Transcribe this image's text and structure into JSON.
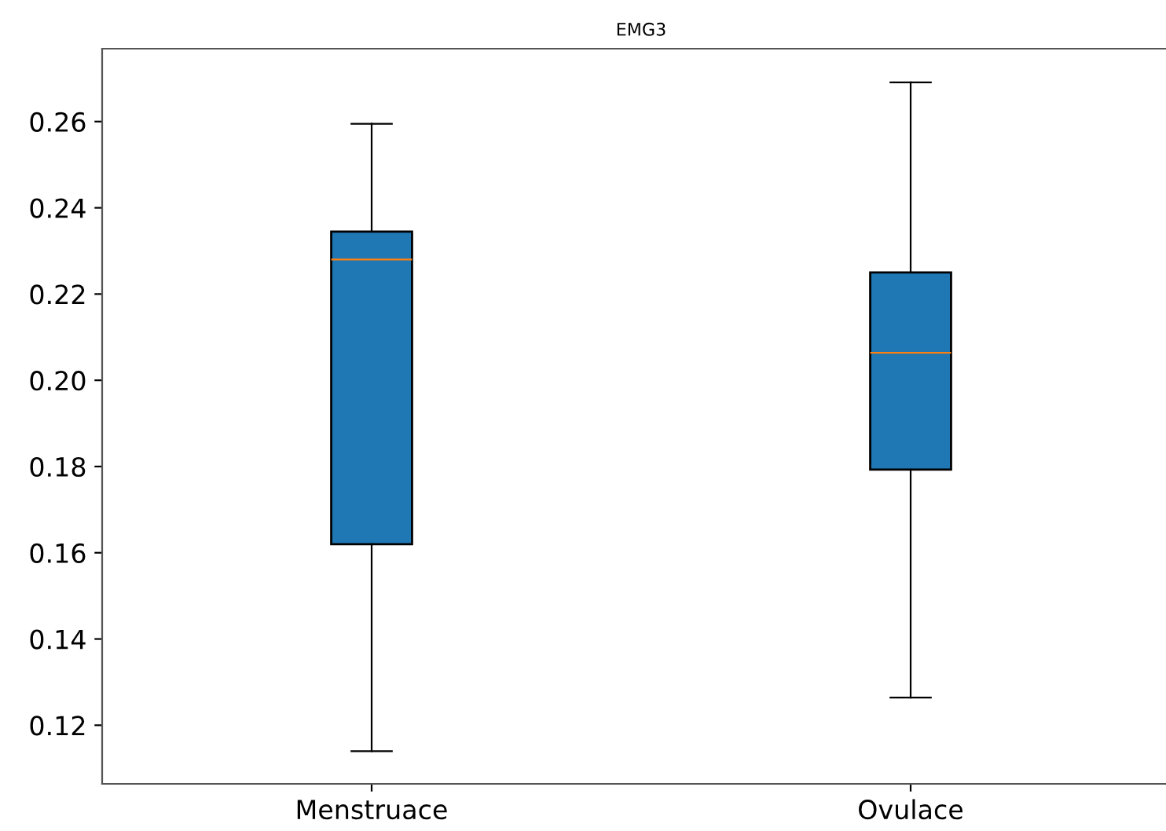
{
  "chart_data": {
    "type": "box",
    "title": "EMG3",
    "categories": [
      "Menstruace",
      "Ovulace"
    ],
    "color": "#1f77b4",
    "boxes": [
      {
        "low": 0.114,
        "q1": 0.162,
        "median": 0.228,
        "q3": 0.2345,
        "high": 0.2595
      },
      {
        "low": 0.1264,
        "q1": 0.1793,
        "median": 0.2064,
        "q3": 0.225,
        "high": 0.2691
      }
    ],
    "ylim": [
      0.1064,
      0.2769
    ],
    "yticks": [
      0.12,
      0.14,
      0.16,
      0.18,
      {
        "value": 0.2,
        "label": "0.20"
      },
      0.22,
      0.24,
      0.26
    ],
    "grid": false
  }
}
